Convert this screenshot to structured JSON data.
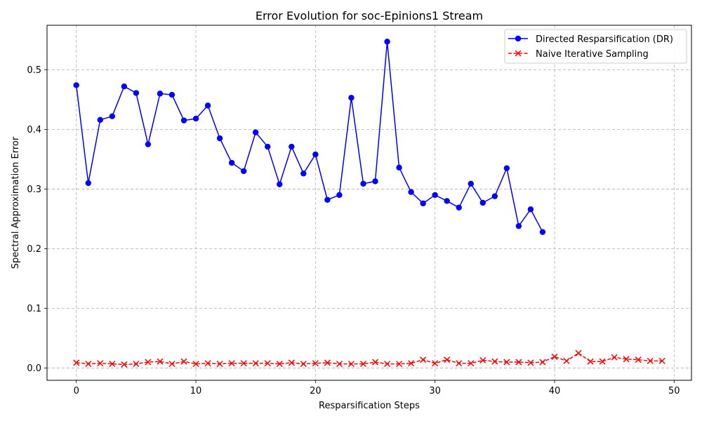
{
  "chart_data": {
    "type": "line",
    "title": "Error Evolution for soc-Epinions1 Stream",
    "xlabel": "Resparsification Steps",
    "ylabel": "Spectral Approximation Error",
    "xlim": [
      -2.45,
      51.45
    ],
    "ylim": [
      -0.0205,
      0.5745
    ],
    "xticks": [
      0,
      10,
      20,
      30,
      40,
      50
    ],
    "yticks": [
      0.0,
      0.1,
      0.2,
      0.3,
      0.4,
      0.5
    ],
    "xtick_labels": [
      "0",
      "10",
      "20",
      "30",
      "40",
      "50"
    ],
    "ytick_labels": [
      "0.0",
      "0.1",
      "0.2",
      "0.3",
      "0.4",
      "0.5"
    ],
    "grid": true,
    "legend_position": "upper right",
    "series": [
      {
        "name": "Directed Resparsification (DR)",
        "color": "#0000ff",
        "linestyle": "solid",
        "marker": "circle",
        "x": [
          0,
          1,
          2,
          3,
          4,
          5,
          6,
          7,
          8,
          9,
          10,
          11,
          12,
          13,
          14,
          15,
          16,
          17,
          18,
          19,
          20,
          21,
          22,
          23,
          24,
          25,
          26,
          27,
          28,
          29,
          30,
          31,
          32,
          33,
          34,
          35,
          36,
          37,
          38,
          39
        ],
        "y": [
          0.474,
          0.31,
          0.416,
          0.422,
          0.472,
          0.461,
          0.375,
          0.46,
          0.458,
          0.415,
          0.418,
          0.44,
          0.385,
          0.344,
          0.33,
          0.395,
          0.371,
          0.308,
          0.371,
          0.326,
          0.358,
          0.282,
          0.29,
          0.453,
          0.309,
          0.313,
          0.547,
          0.336,
          0.295,
          0.276,
          0.29,
          0.28,
          0.269,
          0.309,
          0.277,
          0.288,
          0.335,
          0.238,
          0.266,
          0.228
        ]
      },
      {
        "name": "Naive Iterative Sampling",
        "color": "#ff0000",
        "linestyle": "dashed",
        "marker": "x",
        "x": [
          0,
          1,
          2,
          3,
          4,
          5,
          6,
          7,
          8,
          9,
          10,
          11,
          12,
          13,
          14,
          15,
          16,
          17,
          18,
          19,
          20,
          21,
          22,
          23,
          24,
          25,
          26,
          27,
          28,
          29,
          30,
          31,
          32,
          33,
          34,
          35,
          36,
          37,
          38,
          39,
          40,
          41,
          42,
          43,
          44,
          45,
          46,
          47,
          48,
          49
        ],
        "y": [
          0.009,
          0.007,
          0.008,
          0.007,
          0.006,
          0.007,
          0.01,
          0.011,
          0.007,
          0.011,
          0.007,
          0.008,
          0.007,
          0.008,
          0.008,
          0.008,
          0.008,
          0.007,
          0.009,
          0.007,
          0.008,
          0.009,
          0.007,
          0.007,
          0.007,
          0.01,
          0.007,
          0.007,
          0.008,
          0.014,
          0.008,
          0.014,
          0.008,
          0.008,
          0.013,
          0.011,
          0.01,
          0.01,
          0.009,
          0.01,
          0.019,
          0.012,
          0.025,
          0.011,
          0.011,
          0.018,
          0.015,
          0.014,
          0.012,
          0.012
        ]
      }
    ]
  }
}
